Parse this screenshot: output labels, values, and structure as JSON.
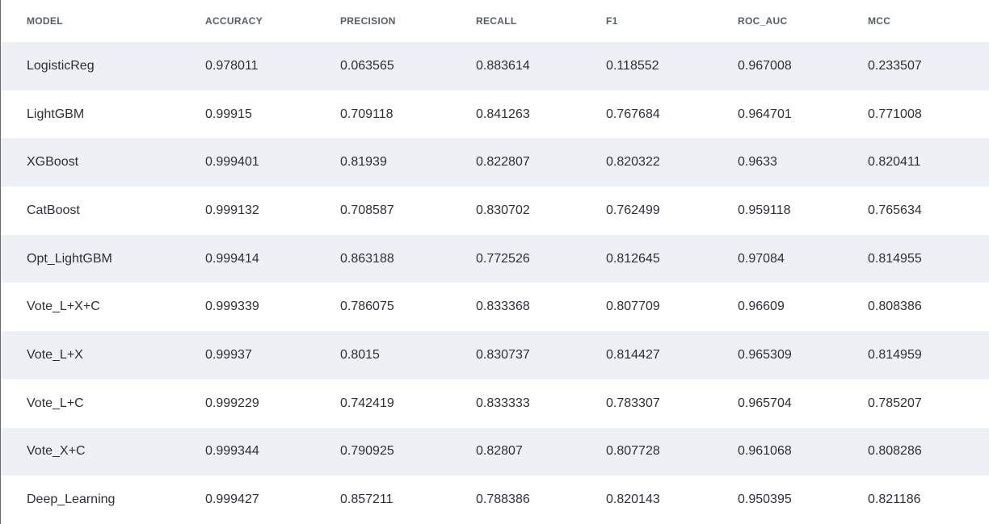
{
  "table": {
    "headers": [
      "MODEL",
      "ACCURACY",
      "PRECISION",
      "RECALL",
      "F1",
      "ROC_AUC",
      "MCC"
    ],
    "rows": [
      [
        "LogisticReg",
        "0.978011",
        "0.063565",
        "0.883614",
        "0.118552",
        "0.967008",
        "0.233507"
      ],
      [
        "LightGBM",
        "0.99915",
        "0.709118",
        "0.841263",
        "0.767684",
        "0.964701",
        "0.771008"
      ],
      [
        "XGBoost",
        "0.999401",
        "0.81939",
        "0.822807",
        "0.820322",
        "0.9633",
        "0.820411"
      ],
      [
        "CatBoost",
        "0.999132",
        "0.708587",
        "0.830702",
        "0.762499",
        "0.959118",
        "0.765634"
      ],
      [
        "Opt_LightGBM",
        "0.999414",
        "0.863188",
        "0.772526",
        "0.812645",
        "0.97084",
        "0.814955"
      ],
      [
        "Vote_L+X+C",
        "0.999339",
        "0.786075",
        "0.833368",
        "0.807709",
        "0.96609",
        "0.808386"
      ],
      [
        "Vote_L+X",
        "0.99937",
        "0.8015",
        "0.830737",
        "0.814427",
        "0.965309",
        "0.814959"
      ],
      [
        "Vote_L+C",
        "0.999229",
        "0.742419",
        "0.833333",
        "0.783307",
        "0.965704",
        "0.785207"
      ],
      [
        "Vote_X+C",
        "0.999344",
        "0.790925",
        "0.82807",
        "0.807728",
        "0.961068",
        "0.808286"
      ],
      [
        "Deep_Learning",
        "0.999427",
        "0.857211",
        "0.788386",
        "0.820143",
        "0.950395",
        "0.821186"
      ]
    ]
  },
  "colors": {
    "stripe": "#edf1f5",
    "header_text": "#565f69",
    "cell_text": "#2c3036",
    "left_border": "#6b6b6b"
  }
}
